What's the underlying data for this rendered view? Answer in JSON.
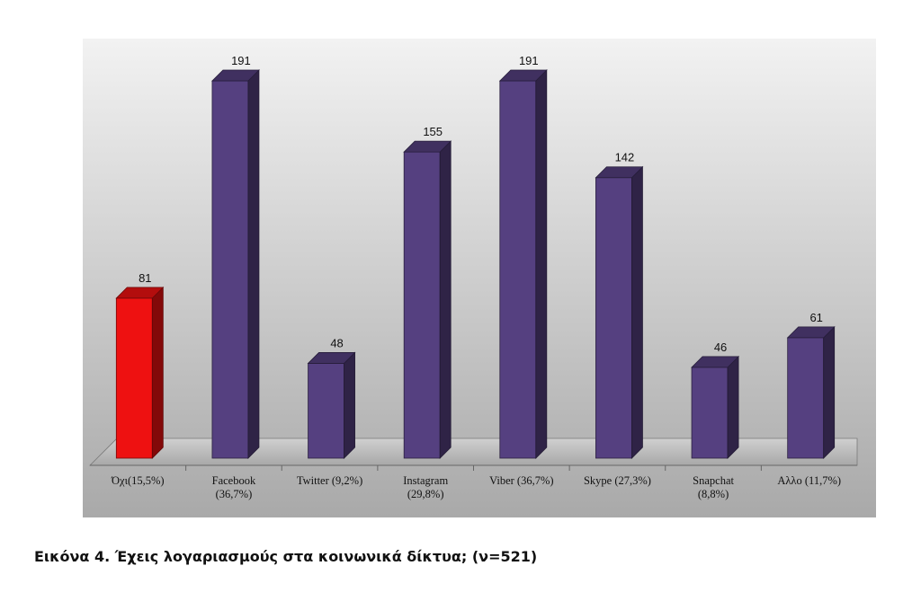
{
  "caption": "Εικόνα 4. Έχεις λογαριασμούς στα κοινωνικά δίκτυα; (ν=521)",
  "colors": {
    "highlight": "#ee1111",
    "bar": "#554080",
    "floor": "#bdbdbd",
    "background_top": "#f2f2f2",
    "background_bottom": "#a9a9a9"
  },
  "chart_data": {
    "type": "bar",
    "style": "3d-columns",
    "categories": [
      [
        "Όχι(15,5%)"
      ],
      [
        "Facebook",
        "(36,7%)"
      ],
      [
        "Twitter (9,2%)"
      ],
      [
        "Instagram",
        "(29,8%)"
      ],
      [
        "Viber (36,7%)"
      ],
      [
        "Skype (27,3%)"
      ],
      [
        "Snapchat",
        "(8,8%)"
      ],
      [
        "Αλλο (11,7%)"
      ]
    ],
    "values": [
      81,
      191,
      48,
      155,
      191,
      142,
      46,
      61
    ],
    "value_labels": [
      "81",
      "191",
      "48",
      "155",
      "191",
      "142",
      "46",
      "61"
    ],
    "highlight_index": 0,
    "ylim": [
      0,
      191
    ],
    "grid": false,
    "legend": "none"
  }
}
